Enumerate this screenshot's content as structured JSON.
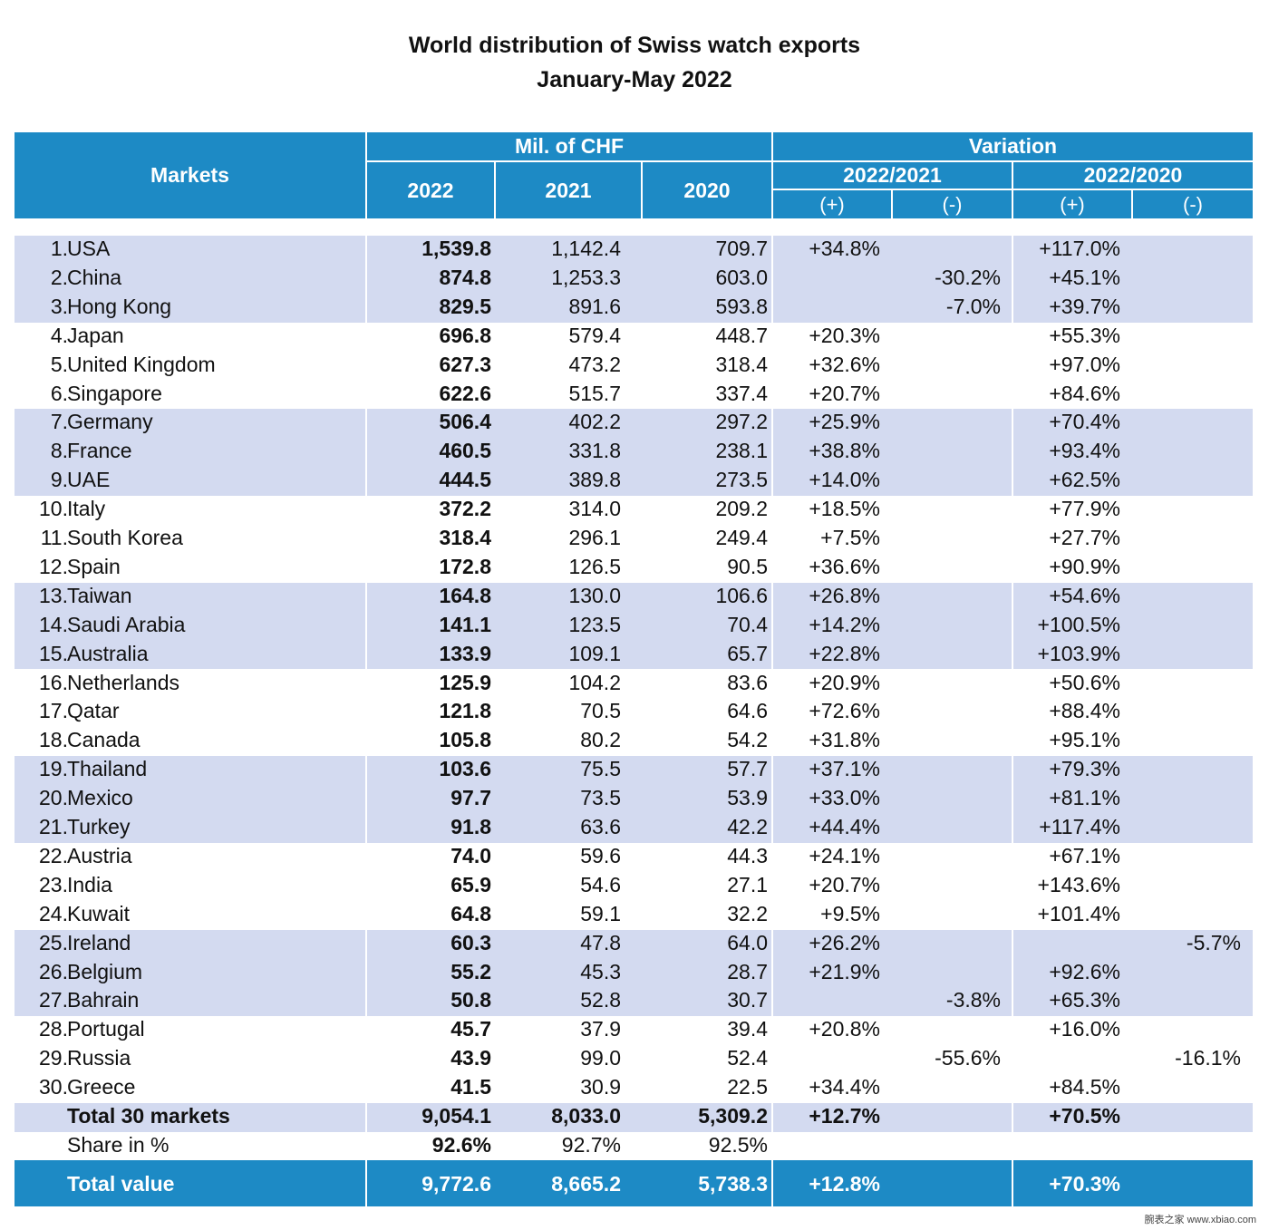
{
  "title": "World distribution of Swiss watch exports",
  "subtitle": "January-May 2022",
  "header": {
    "markets": "Markets",
    "mil_chf": "Mil. of CHF",
    "variation": "Variation",
    "y2022": "2022",
    "y2021": "2021",
    "y2020": "2020",
    "v2122": "2022/2021",
    "v2022": "2022/2020",
    "plus": "(+)",
    "minus": "(-)"
  },
  "chart_data": {
    "type": "table",
    "title": "World distribution of Swiss watch exports",
    "subtitle": "January-May 2022",
    "columns": [
      "Markets",
      "2022",
      "2021",
      "2020",
      "2022/2021 (+)",
      "2022/2021 (-)",
      "2022/2020 (+)",
      "2022/2020 (-)"
    ],
    "rows": [
      {
        "rank": "1.",
        "market": "USA",
        "v2022": "1,539.8",
        "v2021": "1,142.4",
        "v2020": "709.7",
        "p21": "+34.8%",
        "m21": "",
        "p20": "+117.0%",
        "m20": ""
      },
      {
        "rank": "2.",
        "market": "China",
        "v2022": "874.8",
        "v2021": "1,253.3",
        "v2020": "603.0",
        "p21": "",
        "m21": "-30.2%",
        "p20": "+45.1%",
        "m20": ""
      },
      {
        "rank": "3.",
        "market": "Hong Kong",
        "v2022": "829.5",
        "v2021": "891.6",
        "v2020": "593.8",
        "p21": "",
        "m21": "-7.0%",
        "p20": "+39.7%",
        "m20": ""
      },
      {
        "rank": "4.",
        "market": "Japan",
        "v2022": "696.8",
        "v2021": "579.4",
        "v2020": "448.7",
        "p21": "+20.3%",
        "m21": "",
        "p20": "+55.3%",
        "m20": ""
      },
      {
        "rank": "5.",
        "market": "United Kingdom",
        "v2022": "627.3",
        "v2021": "473.2",
        "v2020": "318.4",
        "p21": "+32.6%",
        "m21": "",
        "p20": "+97.0%",
        "m20": ""
      },
      {
        "rank": "6.",
        "market": "Singapore",
        "v2022": "622.6",
        "v2021": "515.7",
        "v2020": "337.4",
        "p21": "+20.7%",
        "m21": "",
        "p20": "+84.6%",
        "m20": ""
      },
      {
        "rank": "7.",
        "market": "Germany",
        "v2022": "506.4",
        "v2021": "402.2",
        "v2020": "297.2",
        "p21": "+25.9%",
        "m21": "",
        "p20": "+70.4%",
        "m20": ""
      },
      {
        "rank": "8.",
        "market": "France",
        "v2022": "460.5",
        "v2021": "331.8",
        "v2020": "238.1",
        "p21": "+38.8%",
        "m21": "",
        "p20": "+93.4%",
        "m20": ""
      },
      {
        "rank": "9.",
        "market": "UAE",
        "v2022": "444.5",
        "v2021": "389.8",
        "v2020": "273.5",
        "p21": "+14.0%",
        "m21": "",
        "p20": "+62.5%",
        "m20": ""
      },
      {
        "rank": "10.",
        "market": "Italy",
        "v2022": "372.2",
        "v2021": "314.0",
        "v2020": "209.2",
        "p21": "+18.5%",
        "m21": "",
        "p20": "+77.9%",
        "m20": ""
      },
      {
        "rank": "11.",
        "market": "South Korea",
        "v2022": "318.4",
        "v2021": "296.1",
        "v2020": "249.4",
        "p21": "+7.5%",
        "m21": "",
        "p20": "+27.7%",
        "m20": ""
      },
      {
        "rank": "12.",
        "market": "Spain",
        "v2022": "172.8",
        "v2021": "126.5",
        "v2020": "90.5",
        "p21": "+36.6%",
        "m21": "",
        "p20": "+90.9%",
        "m20": ""
      },
      {
        "rank": "13.",
        "market": "Taiwan",
        "v2022": "164.8",
        "v2021": "130.0",
        "v2020": "106.6",
        "p21": "+26.8%",
        "m21": "",
        "p20": "+54.6%",
        "m20": ""
      },
      {
        "rank": "14.",
        "market": "Saudi Arabia",
        "v2022": "141.1",
        "v2021": "123.5",
        "v2020": "70.4",
        "p21": "+14.2%",
        "m21": "",
        "p20": "+100.5%",
        "m20": ""
      },
      {
        "rank": "15.",
        "market": "Australia",
        "v2022": "133.9",
        "v2021": "109.1",
        "v2020": "65.7",
        "p21": "+22.8%",
        "m21": "",
        "p20": "+103.9%",
        "m20": ""
      },
      {
        "rank": "16.",
        "market": "Netherlands",
        "v2022": "125.9",
        "v2021": "104.2",
        "v2020": "83.6",
        "p21": "+20.9%",
        "m21": "",
        "p20": "+50.6%",
        "m20": ""
      },
      {
        "rank": "17.",
        "market": "Qatar",
        "v2022": "121.8",
        "v2021": "70.5",
        "v2020": "64.6",
        "p21": "+72.6%",
        "m21": "",
        "p20": "+88.4%",
        "m20": ""
      },
      {
        "rank": "18.",
        "market": "Canada",
        "v2022": "105.8",
        "v2021": "80.2",
        "v2020": "54.2",
        "p21": "+31.8%",
        "m21": "",
        "p20": "+95.1%",
        "m20": ""
      },
      {
        "rank": "19.",
        "market": "Thailand",
        "v2022": "103.6",
        "v2021": "75.5",
        "v2020": "57.7",
        "p21": "+37.1%",
        "m21": "",
        "p20": "+79.3%",
        "m20": ""
      },
      {
        "rank": "20.",
        "market": "Mexico",
        "v2022": "97.7",
        "v2021": "73.5",
        "v2020": "53.9",
        "p21": "+33.0%",
        "m21": "",
        "p20": "+81.1%",
        "m20": ""
      },
      {
        "rank": "21.",
        "market": "Turkey",
        "v2022": "91.8",
        "v2021": "63.6",
        "v2020": "42.2",
        "p21": "+44.4%",
        "m21": "",
        "p20": "+117.4%",
        "m20": ""
      },
      {
        "rank": "22.",
        "market": "Austria",
        "v2022": "74.0",
        "v2021": "59.6",
        "v2020": "44.3",
        "p21": "+24.1%",
        "m21": "",
        "p20": "+67.1%",
        "m20": ""
      },
      {
        "rank": "23.",
        "market": "India",
        "v2022": "65.9",
        "v2021": "54.6",
        "v2020": "27.1",
        "p21": "+20.7%",
        "m21": "",
        "p20": "+143.6%",
        "m20": ""
      },
      {
        "rank": "24.",
        "market": "Kuwait",
        "v2022": "64.8",
        "v2021": "59.1",
        "v2020": "32.2",
        "p21": "+9.5%",
        "m21": "",
        "p20": "+101.4%",
        "m20": ""
      },
      {
        "rank": "25.",
        "market": "Ireland",
        "v2022": "60.3",
        "v2021": "47.8",
        "v2020": "64.0",
        "p21": "+26.2%",
        "m21": "",
        "p20": "",
        "m20": "-5.7%"
      },
      {
        "rank": "26.",
        "market": "Belgium",
        "v2022": "55.2",
        "v2021": "45.3",
        "v2020": "28.7",
        "p21": "+21.9%",
        "m21": "",
        "p20": "+92.6%",
        "m20": ""
      },
      {
        "rank": "27.",
        "market": "Bahrain",
        "v2022": "50.8",
        "v2021": "52.8",
        "v2020": "30.7",
        "p21": "",
        "m21": "-3.8%",
        "p20": "+65.3%",
        "m20": ""
      },
      {
        "rank": "28.",
        "market": "Portugal",
        "v2022": "45.7",
        "v2021": "37.9",
        "v2020": "39.4",
        "p21": "+20.8%",
        "m21": "",
        "p20": "+16.0%",
        "m20": ""
      },
      {
        "rank": "29.",
        "market": "Russia",
        "v2022": "43.9",
        "v2021": "99.0",
        "v2020": "52.4",
        "p21": "",
        "m21": "-55.6%",
        "p20": "",
        "m20": "-16.1%"
      },
      {
        "rank": "30.",
        "market": "Greece",
        "v2022": "41.5",
        "v2021": "30.9",
        "v2020": "22.5",
        "p21": "+34.4%",
        "m21": "",
        "p20": "+84.5%",
        "m20": ""
      }
    ],
    "total30": {
      "market": "Total 30 markets",
      "v2022": "9,054.1",
      "v2021": "8,033.0",
      "v2020": "5,309.2",
      "p21": "+12.7%",
      "p20": "+70.5%"
    },
    "share": {
      "market": "Share in %",
      "v2022": "92.6%",
      "v2021": "92.7%",
      "v2020": "92.5%"
    },
    "total_value": {
      "market": "Total value",
      "v2022": "9,772.6",
      "v2021": "8,665.2",
      "v2020": "5,738.3",
      "p21": "+12.8%",
      "p20": "+70.3%"
    }
  },
  "colors": {
    "header": "#1d8ac5",
    "band": "#d3daf0"
  },
  "watermark": "腕表之家 www.xbiao.com"
}
